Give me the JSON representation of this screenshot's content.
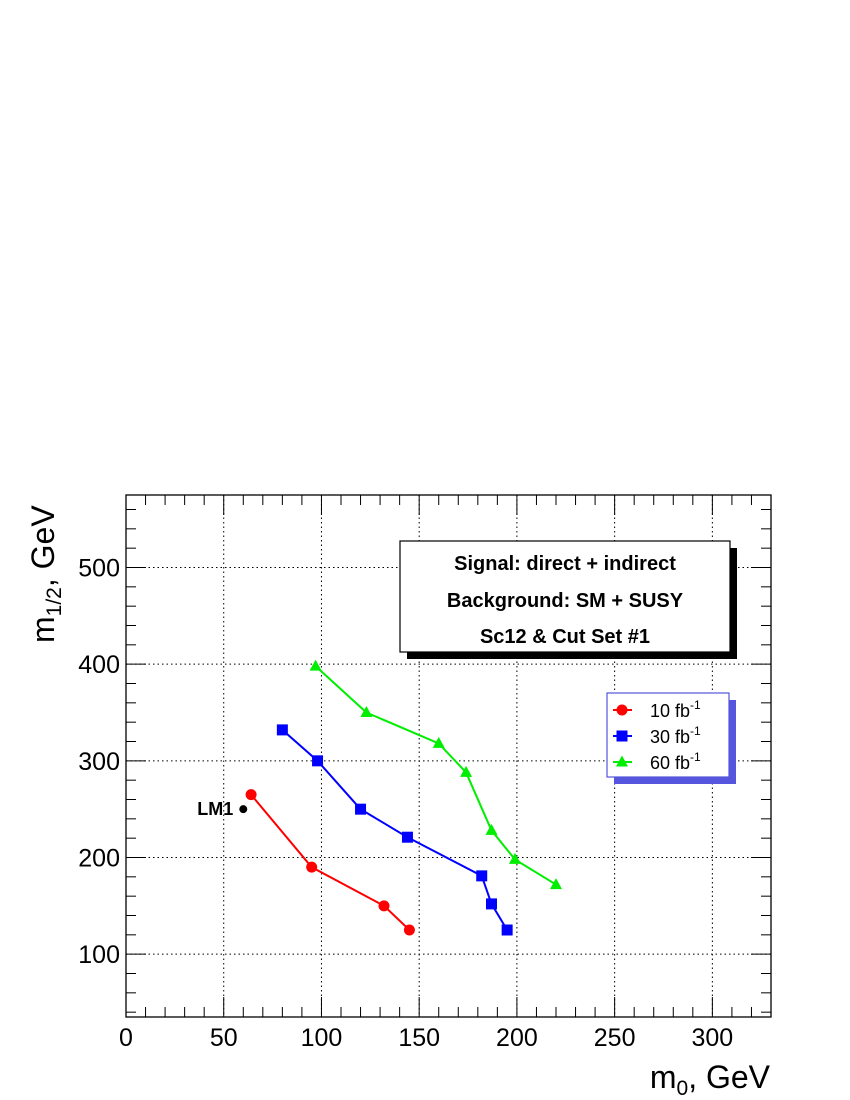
{
  "chart_data": {
    "type": "line",
    "xlabel": "m_0, GeV",
    "xlabel_main": "m",
    "xlabel_sub": "0",
    "xlabel_rest": ", GeV",
    "ylabel_main": "m",
    "ylabel_sub": "1/2",
    "ylabel_rest": ", GeV",
    "xlim": [
      0,
      330
    ],
    "ylim": [
      35,
      575
    ],
    "x_ticks": [
      0,
      50,
      100,
      150,
      200,
      250,
      300
    ],
    "y_ticks": [
      100,
      200,
      300,
      400,
      500
    ],
    "grid": true,
    "info_box": [
      "Signal: direct + indirect",
      "Background: SM + SUSY",
      "Sc12 & Cut Set #1"
    ],
    "legend_position": "right",
    "series": [
      {
        "name": "10 fb",
        "name_sup": "-1",
        "color": "#ff0000",
        "marker": "circle",
        "x": [
          64,
          95,
          132,
          145
        ],
        "y": [
          265,
          190,
          150,
          125
        ]
      },
      {
        "name": "30 fb",
        "name_sup": "-1",
        "color": "#0000ff",
        "marker": "square",
        "x": [
          80,
          98,
          120,
          144,
          182,
          187,
          195
        ],
        "y": [
          332,
          300,
          250,
          221,
          181,
          152,
          125
        ]
      },
      {
        "name": "60 fb",
        "name_sup": "-1",
        "color": "#00ee00",
        "marker": "triangle",
        "x": [
          97,
          123,
          160,
          174,
          187,
          199,
          220
        ],
        "y": [
          398,
          350,
          318,
          288,
          228,
          198,
          172
        ]
      }
    ],
    "annotations": [
      {
        "label": "LM1",
        "x": 60,
        "y": 250,
        "color": "#000000"
      }
    ]
  }
}
